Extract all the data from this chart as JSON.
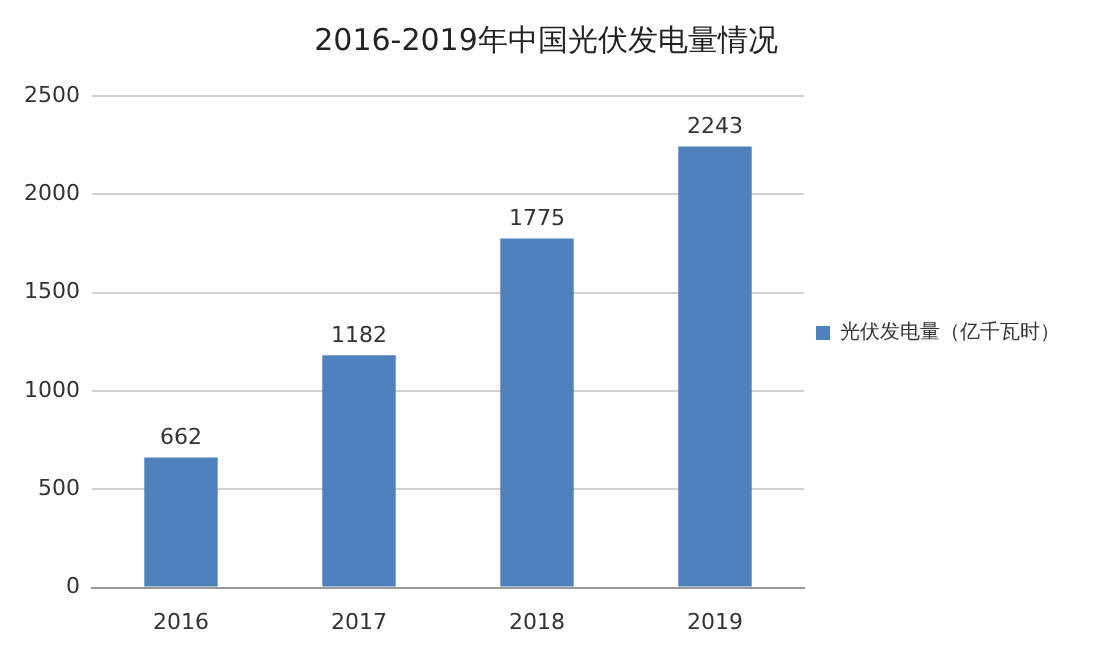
{
  "chart_data": {
    "type": "bar",
    "title": "2016-2019年中国光伏发电量情况",
    "categories": [
      "2016",
      "2017",
      "2018",
      "2019"
    ],
    "series": [
      {
        "name": "光伏发电量（亿千瓦时）",
        "color": "#4f81bd",
        "values": [
          662,
          1182,
          1775,
          2243
        ]
      }
    ],
    "ylim": [
      0,
      2500
    ],
    "yticks": [
      0,
      500,
      1000,
      1500,
      2000,
      2500
    ],
    "grid": "y",
    "legend": "right",
    "data_labels": true
  }
}
